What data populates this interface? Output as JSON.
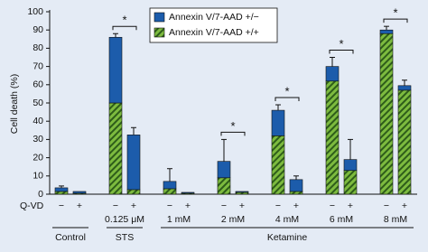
{
  "chart_data": {
    "type": "stacked_bar",
    "y_label": "Cell death (%)",
    "ylim": [
      0,
      100
    ],
    "yticks": [
      0,
      10,
      20,
      30,
      40,
      50,
      60,
      70,
      80,
      90,
      100
    ],
    "categories": [
      "−",
      "+",
      "−",
      "+",
      "−",
      "+",
      "−",
      "+",
      "−",
      "+",
      "−",
      "+",
      "−",
      "+"
    ],
    "row_label": "Q-VD",
    "series": [
      {
        "name": "Annexin V/7-AAD +/−",
        "color": "#1c5cab",
        "hatch": false,
        "values": [
          2,
          1,
          36,
          30,
          4,
          0.5,
          9,
          0.5,
          14,
          6.5,
          8,
          6,
          2,
          2.5
        ]
      },
      {
        "name": "Annexin V/7-AAD +/+",
        "color": "#7dbb3f",
        "hatch": true,
        "values": [
          1.5,
          0.5,
          50,
          2.5,
          3,
          0.5,
          9,
          1,
          32,
          1.5,
          62,
          13,
          88,
          57
        ]
      }
    ],
    "errors": [
      1,
      0,
      2,
      4,
      7,
      0,
      12,
      0,
      3,
      2,
      5,
      11,
      2,
      3
    ],
    "groups": [
      {
        "dose": null,
        "star": null
      },
      {
        "dose": "0.125 μM",
        "star": "*"
      },
      {
        "dose": "1 mM",
        "star": null
      },
      {
        "dose": "2 mM",
        "star": "*"
      },
      {
        "dose": "4 mM",
        "star": "*"
      },
      {
        "dose": "6 mM",
        "star": "*"
      },
      {
        "dose": "8 mM",
        "star": "*"
      }
    ],
    "treatments": [
      {
        "label": "Control",
        "span": 1
      },
      {
        "label": "STS",
        "span": 1
      },
      {
        "label": "Ketamine",
        "span": 5
      }
    ],
    "legend": "upper-left"
  }
}
